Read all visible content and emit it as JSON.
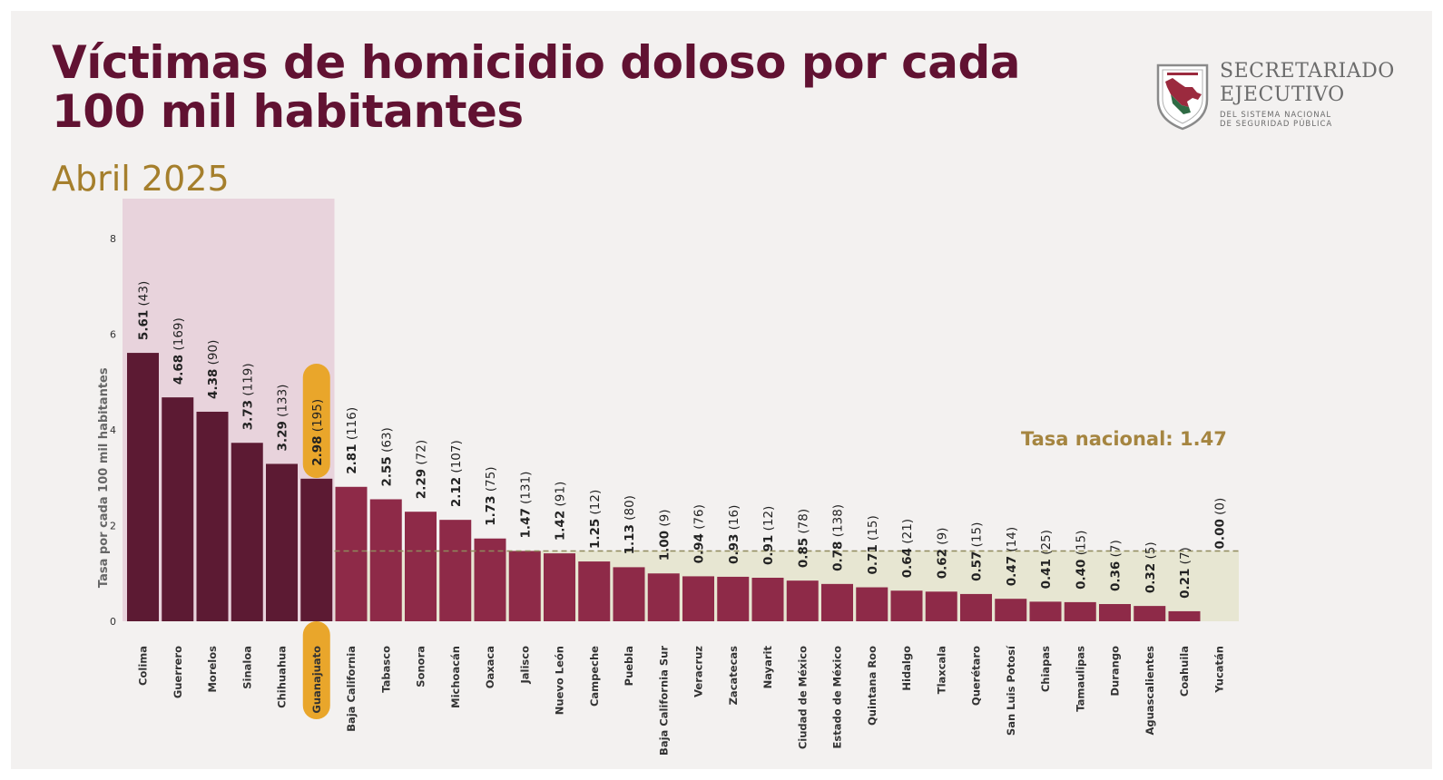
{
  "title": "Víctimas de homicidio doloso por cada 100 mil habitantes",
  "subtitle": "Abril 2025",
  "logo": {
    "line1": "SECRETARIADO",
    "line2": "EJECUTIVO",
    "line3": "DEL SISTEMA NACIONAL",
    "line4": "DE SEGURIDAD PÚBLICA"
  },
  "colors": {
    "top_bar": "#5c1a33",
    "other_bar": "#8e2a48",
    "top_band": "#e8d3dc",
    "below_band": "#e7e6d2",
    "highlight": "#e9a62b",
    "national_line": "#8f8a5d",
    "national_text": "#a58540",
    "title": "#611232",
    "subtitle": "#a57f2c"
  },
  "chart_data": {
    "type": "bar",
    "ylabel": "Tasa por cada 100 mil habitantes",
    "ylim": [
      0,
      8
    ],
    "yticks": [
      "0",
      "2",
      "4",
      "6",
      "8"
    ],
    "national_rate": 1.47,
    "national_label": "Tasa nacional: 1.47",
    "highlight_category": "Guanajuato",
    "top_group_count": 6,
    "categories": [
      "Colima",
      "Guerrero",
      "Morelos",
      "Sinaloa",
      "Chihuahua",
      "Guanajuato",
      "Baja California",
      "Tabasco",
      "Sonora",
      "Michoacán",
      "Oaxaca",
      "Jalisco",
      "Nuevo León",
      "Campeche",
      "Puebla",
      "Baja California Sur",
      "Veracruz",
      "Zacatecas",
      "Nayarit",
      "Ciudad de México",
      "Estado de México",
      "Quintana Roo",
      "Hidalgo",
      "Tlaxcala",
      "Querétaro",
      "San Luis Potosí",
      "Chiapas",
      "Tamaulipas",
      "Durango",
      "Aguascalientes",
      "Coahuila",
      "Yucatán"
    ],
    "values": [
      5.61,
      4.68,
      4.38,
      3.73,
      3.29,
      2.98,
      2.81,
      2.55,
      2.29,
      2.12,
      1.73,
      1.47,
      1.42,
      1.25,
      1.13,
      1.0,
      0.94,
      0.93,
      0.91,
      0.85,
      0.78,
      0.71,
      0.64,
      0.62,
      0.57,
      0.47,
      0.41,
      0.4,
      0.36,
      0.32,
      0.21,
      0.0
    ],
    "value_labels": [
      "5.61",
      "4.68",
      "4.38",
      "3.73",
      "3.29",
      "2.98",
      "2.81",
      "2.55",
      "2.29",
      "2.12",
      "1.73",
      "1.47",
      "1.42",
      "1.25",
      "1.13",
      "1.00",
      "0.94",
      "0.93",
      "0.91",
      "0.85",
      "0.78",
      "0.71",
      "0.64",
      "0.62",
      "0.57",
      "0.47",
      "0.41",
      "0.40",
      "0.36",
      "0.32",
      "0.21",
      "0.00"
    ],
    "victim_labels": [
      "(43)",
      "(169)",
      "(90)",
      "(119)",
      "(133)",
      "(195)",
      "(116)",
      "(63)",
      "(72)",
      "(107)",
      "(75)",
      "(131)",
      "(91)",
      "(12)",
      "(80)",
      "(9)",
      "(76)",
      "(16)",
      "(12)",
      "(78)",
      "(138)",
      "(15)",
      "(21)",
      "(9)",
      "(15)",
      "(14)",
      "(25)",
      "(15)",
      "(7)",
      "(5)",
      "(7)",
      "(0)"
    ]
  }
}
